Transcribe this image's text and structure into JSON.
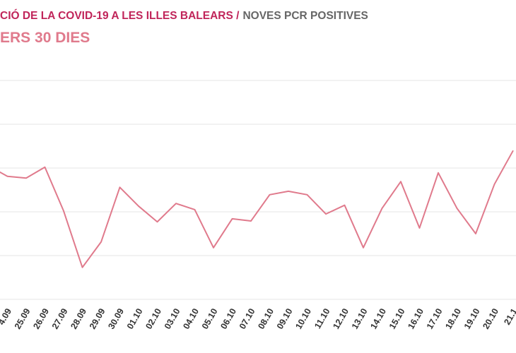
{
  "chart_data": {
    "type": "line",
    "title_part1": "CIÓ DE LA COVID-19 A LES ILLES BALEARS /",
    "title_part2": "NOVES PCR POSITIVES",
    "subtitle": "ERS 30 DIES",
    "categories": [
      null,
      "4.09",
      "25.09",
      "26.09",
      "27.09",
      "28.09",
      "29.09",
      "30.09",
      "01.10",
      "02.10",
      "03.10",
      "04.10",
      "05.10",
      "06.10",
      "07.10",
      "08.10",
      "09.10",
      "10.10",
      "11.10",
      "12.10",
      "13.10",
      "14.10",
      "15.10",
      "16.10",
      "17.10",
      "18.10",
      "19.10",
      "20.10",
      "21.1"
    ],
    "values": [
      3.05,
      2.81,
      2.77,
      3.02,
      2.02,
      0.73,
      1.31,
      2.56,
      2.13,
      1.77,
      2.19,
      2.05,
      1.18,
      1.84,
      1.79,
      2.39,
      2.47,
      2.39,
      1.95,
      2.15,
      1.18,
      2.08,
      2.69,
      1.63,
      2.89,
      2.08,
      1.5,
      2.63,
      3.4
    ],
    "color": "#e07a8c",
    "ylim": [
      0,
      5
    ],
    "yticks": [
      0,
      1,
      2,
      3,
      4,
      5
    ],
    "grid": true
  }
}
